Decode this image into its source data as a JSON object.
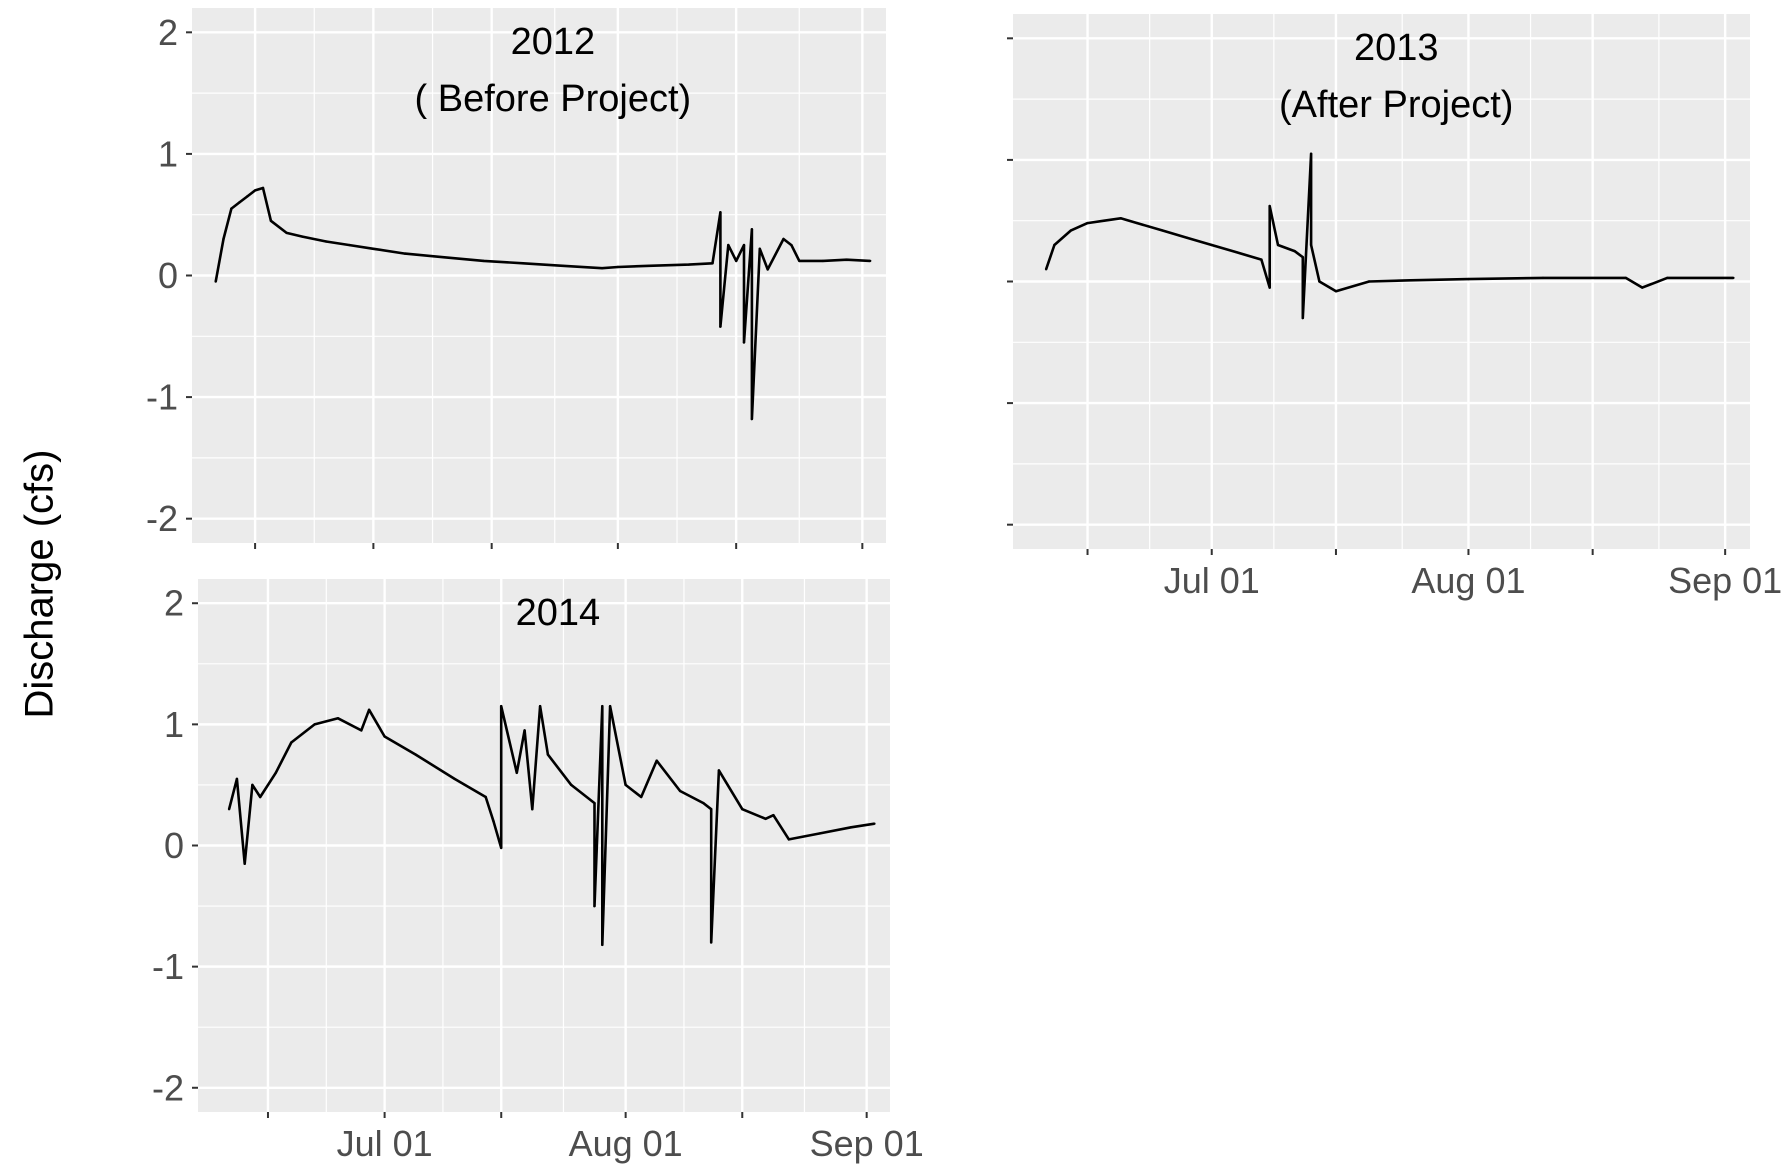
{
  "figure": {
    "ylabel": "Discharge (cfs)"
  },
  "colors": {
    "panel_background": "#ebebeb",
    "grid": "#ffffff",
    "line": "#000000",
    "tick_text": "#4d4d4d",
    "title_text": "#000000"
  },
  "chart_data": [
    {
      "type": "line",
      "title": "2012",
      "subtitle": "( Before Project)",
      "xlabel": "",
      "ylabel": "Discharge (cfs)",
      "xlim": [
        "2012-06-08",
        "2012-09-04"
      ],
      "ylim": [
        -2.2,
        2.2
      ],
      "yticks": [
        -2,
        -1,
        0,
        1,
        2
      ],
      "ytick_labels": [
        "-2",
        "-1",
        "0",
        "1",
        "2"
      ],
      "xticks": [
        "2012-06-16",
        "2012-07-01",
        "2012-07-16",
        "2012-08-01",
        "2012-08-16",
        "2012-09-01"
      ],
      "xtick_labels": [
        "",
        "",
        "",
        "",
        "",
        ""
      ],
      "grid": true,
      "series": [
        {
          "x": [
            "2012-06-11",
            "2012-06-12",
            "2012-06-13",
            "2012-06-14",
            "2012-06-15",
            "2012-06-16",
            "2012-06-17",
            "2012-06-18",
            "2012-06-20",
            "2012-06-22",
            "2012-06-25",
            "2012-06-28",
            "2012-07-01",
            "2012-07-05",
            "2012-07-10",
            "2012-07-15",
            "2012-07-20",
            "2012-07-25",
            "2012-07-30",
            "2012-08-01",
            "2012-08-05",
            "2012-08-10",
            "2012-08-13",
            "2012-08-14",
            "2012-08-14",
            "2012-08-15",
            "2012-08-16",
            "2012-08-17",
            "2012-08-17",
            "2012-08-18",
            "2012-08-18",
            "2012-08-19",
            "2012-08-20",
            "2012-08-22",
            "2012-08-23",
            "2012-08-24",
            "2012-08-27",
            "2012-08-30",
            "2012-09-02"
          ],
          "y": [
            -0.05,
            0.3,
            0.55,
            0.6,
            0.65,
            0.7,
            0.72,
            0.45,
            0.35,
            0.32,
            0.28,
            0.25,
            0.22,
            0.18,
            0.15,
            0.12,
            0.1,
            0.08,
            0.06,
            0.07,
            0.08,
            0.09,
            0.1,
            0.52,
            -0.42,
            0.25,
            0.12,
            0.25,
            -0.55,
            0.38,
            -1.18,
            0.22,
            0.05,
            0.3,
            0.25,
            0.12,
            0.12,
            0.13,
            0.12
          ]
        }
      ]
    },
    {
      "type": "line",
      "title": "2013",
      "subtitle": "(After Project)",
      "xlabel": "",
      "ylabel": "",
      "xlim": [
        "2013-06-07",
        "2013-09-04"
      ],
      "ylim": [
        -2.2,
        2.2
      ],
      "yticks": [
        -2,
        -1,
        0,
        1,
        2
      ],
      "ytick_labels": [
        "",
        "",
        "",
        "",
        ""
      ],
      "xticks": [
        "2013-06-16",
        "2013-07-01",
        "2013-07-16",
        "2013-08-01",
        "2013-08-16",
        "2013-09-01"
      ],
      "xtick_labels": [
        "",
        "Jul 01",
        "",
        "Aug 01",
        "",
        "Sep 01"
      ],
      "grid": true,
      "series": [
        {
          "x": [
            "2013-06-11",
            "2013-06-12",
            "2013-06-14",
            "2013-06-16",
            "2013-06-18",
            "2013-06-20",
            "2013-06-22",
            "2013-06-25",
            "2013-06-28",
            "2013-07-01",
            "2013-07-04",
            "2013-07-07",
            "2013-07-08",
            "2013-07-08",
            "2013-07-09",
            "2013-07-11",
            "2013-07-12",
            "2013-07-12",
            "2013-07-13",
            "2013-07-13",
            "2013-07-14",
            "2013-07-16",
            "2013-07-20",
            "2013-07-25",
            "2013-08-01",
            "2013-08-10",
            "2013-08-20",
            "2013-08-22",
            "2013-08-25",
            "2013-09-02"
          ],
          "y": [
            0.1,
            0.3,
            0.42,
            0.48,
            0.5,
            0.52,
            0.48,
            0.42,
            0.36,
            0.3,
            0.24,
            0.18,
            -0.05,
            0.62,
            0.3,
            0.25,
            0.2,
            -0.3,
            1.05,
            0.3,
            0.0,
            -0.08,
            0.0,
            0.01,
            0.02,
            0.03,
            0.03,
            -0.05,
            0.03,
            0.03
          ]
        }
      ]
    },
    {
      "type": "line",
      "title": "2014",
      "subtitle": "",
      "xlabel": "",
      "ylabel": "",
      "xlim": [
        "2014-06-07",
        "2014-09-04"
      ],
      "ylim": [
        -2.2,
        2.2
      ],
      "yticks": [
        -2,
        -1,
        0,
        1,
        2
      ],
      "ytick_labels": [
        "-2",
        "-1",
        "0",
        "1",
        "2"
      ],
      "xticks": [
        "2014-06-16",
        "2014-07-01",
        "2014-07-16",
        "2014-08-01",
        "2014-08-16",
        "2014-09-01"
      ],
      "xtick_labels": [
        "",
        "Jul 01",
        "",
        "Aug 01",
        "",
        "Sep 01"
      ],
      "grid": true,
      "series": [
        {
          "x": [
            "2014-06-11",
            "2014-06-12",
            "2014-06-13",
            "2014-06-14",
            "2014-06-15",
            "2014-06-17",
            "2014-06-19",
            "2014-06-22",
            "2014-06-25",
            "2014-06-28",
            "2014-06-29",
            "2014-07-01",
            "2014-07-05",
            "2014-07-10",
            "2014-07-14",
            "2014-07-15",
            "2014-07-16",
            "2014-07-16",
            "2014-07-18",
            "2014-07-19",
            "2014-07-20",
            "2014-07-21",
            "2014-07-22",
            "2014-07-25",
            "2014-07-28",
            "2014-07-28",
            "2014-07-29",
            "2014-07-29",
            "2014-07-30",
            "2014-08-01",
            "2014-08-03",
            "2014-08-05",
            "2014-08-08",
            "2014-08-11",
            "2014-08-12",
            "2014-08-12",
            "2014-08-13",
            "2014-08-16",
            "2014-08-19",
            "2014-08-20",
            "2014-08-22",
            "2014-08-26",
            "2014-08-30",
            "2014-09-02"
          ],
          "y": [
            0.3,
            0.55,
            -0.15,
            0.5,
            0.4,
            0.6,
            0.85,
            1.0,
            1.05,
            0.95,
            1.12,
            0.9,
            0.75,
            0.55,
            0.4,
            0.2,
            -0.02,
            1.15,
            0.6,
            0.95,
            0.3,
            1.15,
            0.75,
            0.5,
            0.35,
            -0.5,
            1.15,
            -0.82,
            1.15,
            0.5,
            0.4,
            0.7,
            0.45,
            0.35,
            0.3,
            -0.8,
            0.62,
            0.3,
            0.22,
            0.25,
            0.05,
            0.1,
            0.15,
            0.18
          ]
        }
      ]
    }
  ]
}
